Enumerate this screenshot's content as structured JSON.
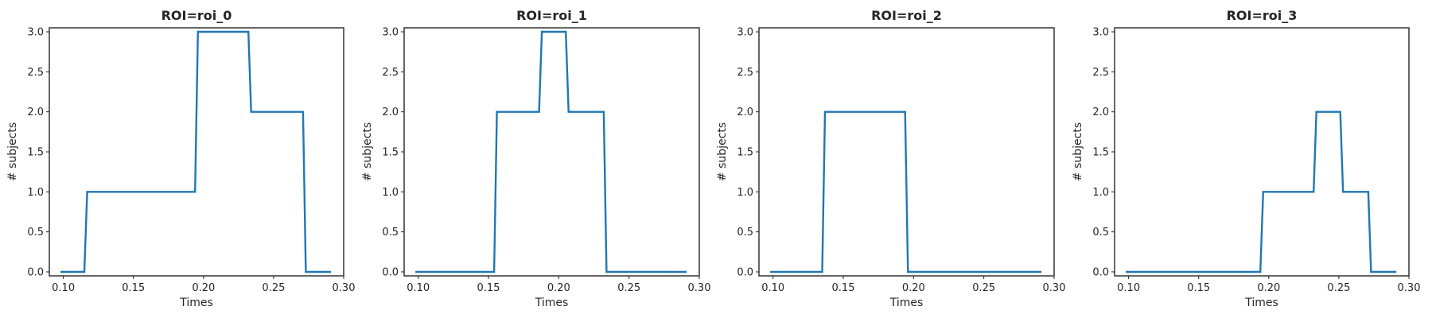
{
  "figure": {
    "line_color": "#1f77b4",
    "background": "#ffffff"
  },
  "chart_data": [
    {
      "type": "line",
      "title": "ROI=roi_0",
      "xlabel": "Times",
      "ylabel": "# subjects",
      "xlim": [
        0.09,
        0.3
      ],
      "ylim": [
        -0.05,
        3.05
      ],
      "xticks": [
        0.1,
        0.15,
        0.2,
        0.25,
        0.3
      ],
      "xtick_labels": [
        "0.10",
        "0.15",
        "0.20",
        "0.25",
        "0.30"
      ],
      "yticks": [
        0.0,
        0.5,
        1.0,
        1.5,
        2.0,
        2.5,
        3.0
      ],
      "ytick_labels": [
        "0.0",
        "0.5",
        "1.0",
        "1.5",
        "2.0",
        "2.5",
        "3.0"
      ],
      "grid": false,
      "series": [
        {
          "x": [
            0.098,
            0.115,
            0.117,
            0.194,
            0.196,
            0.232,
            0.234,
            0.271,
            0.273,
            0.291
          ],
          "y": [
            0,
            0,
            1,
            1,
            3,
            3,
            2,
            2,
            0,
            0
          ]
        }
      ]
    },
    {
      "type": "line",
      "title": "ROI=roi_1",
      "xlabel": "Times",
      "ylabel": "# subjects",
      "xlim": [
        0.09,
        0.3
      ],
      "ylim": [
        -0.05,
        3.05
      ],
      "xticks": [
        0.1,
        0.15,
        0.2,
        0.25,
        0.3
      ],
      "xtick_labels": [
        "0.10",
        "0.15",
        "0.20",
        "0.25",
        "0.30"
      ],
      "yticks": [
        0.0,
        0.5,
        1.0,
        1.5,
        2.0,
        2.5,
        3.0
      ],
      "ytick_labels": [
        "0.0",
        "0.5",
        "1.0",
        "1.5",
        "2.0",
        "2.5",
        "3.0"
      ],
      "grid": false,
      "series": [
        {
          "x": [
            0.098,
            0.154,
            0.156,
            0.186,
            0.188,
            0.205,
            0.207,
            0.232,
            0.234,
            0.291
          ],
          "y": [
            0,
            0,
            2,
            2,
            3,
            3,
            2,
            2,
            0,
            0
          ]
        }
      ]
    },
    {
      "type": "line",
      "title": "ROI=roi_2",
      "xlabel": "Times",
      "ylabel": "# subjects",
      "xlim": [
        0.09,
        0.3
      ],
      "ylim": [
        -0.05,
        3.05
      ],
      "xticks": [
        0.1,
        0.15,
        0.2,
        0.25,
        0.3
      ],
      "xtick_labels": [
        "0.10",
        "0.15",
        "0.20",
        "0.25",
        "0.30"
      ],
      "yticks": [
        0.0,
        0.5,
        1.0,
        1.5,
        2.0,
        2.5,
        3.0
      ],
      "ytick_labels": [
        "0.0",
        "0.5",
        "1.0",
        "1.5",
        "2.0",
        "2.5",
        "3.0"
      ],
      "grid": false,
      "series": [
        {
          "x": [
            0.098,
            0.135,
            0.137,
            0.194,
            0.196,
            0.291
          ],
          "y": [
            0,
            0,
            2,
            2,
            0,
            0
          ]
        }
      ]
    },
    {
      "type": "line",
      "title": "ROI=roi_3",
      "xlabel": "Times",
      "ylabel": "# subjects",
      "xlim": [
        0.09,
        0.3
      ],
      "ylim": [
        -0.05,
        3.05
      ],
      "xticks": [
        0.1,
        0.15,
        0.2,
        0.25,
        0.3
      ],
      "xtick_labels": [
        "0.10",
        "0.15",
        "0.20",
        "0.25",
        "0.30"
      ],
      "yticks": [
        0.0,
        0.5,
        1.0,
        1.5,
        2.0,
        2.5,
        3.0
      ],
      "ytick_labels": [
        "0.0",
        "0.5",
        "1.0",
        "1.5",
        "2.0",
        "2.5",
        "3.0"
      ],
      "grid": false,
      "series": [
        {
          "x": [
            0.098,
            0.194,
            0.196,
            0.232,
            0.234,
            0.251,
            0.253,
            0.271,
            0.273,
            0.291
          ],
          "y": [
            0,
            0,
            1,
            1,
            2,
            2,
            1,
            1,
            0,
            0
          ]
        }
      ]
    }
  ]
}
